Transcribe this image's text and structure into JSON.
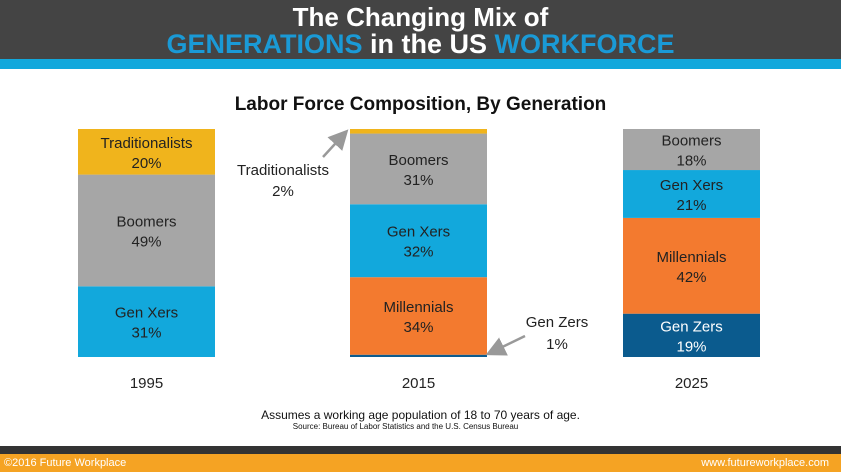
{
  "header": {
    "line1": "The Changing Mix of",
    "line2_a": "GENERATIONS",
    "line2_b": " in the US ",
    "line2_c": "WORKFORCE"
  },
  "chart_data": {
    "type": "bar",
    "stacked": true,
    "title": "Labor Force Composition,  By Generation",
    "categories": [
      "1995",
      "2015",
      "2025"
    ],
    "ylim": [
      0,
      100
    ],
    "series": [
      {
        "name": "Gen Zers",
        "color": "#0B5B8E",
        "values": [
          0,
          1,
          19
        ]
      },
      {
        "name": "Millennials",
        "color": "#F37A2F",
        "values": [
          0,
          34,
          42
        ]
      },
      {
        "name": "Gen Xers",
        "color": "#12A8DC",
        "values": [
          31,
          32,
          21
        ]
      },
      {
        "name": "Boomers",
        "color": "#A6A6A6",
        "values": [
          49,
          31,
          18
        ]
      },
      {
        "name": "Traditionalists",
        "color": "#F0B41C",
        "values": [
          20,
          2,
          0
        ]
      }
    ],
    "callouts": [
      {
        "name": "Traditionalists",
        "value": "2%",
        "category": "2015"
      },
      {
        "name": "Gen Zers",
        "value": "1%",
        "category": "2015"
      }
    ]
  },
  "note": "Assumes a working age population of 18 to 70 years of age.",
  "source": "Source: Bureau of Labor Statistics and the U.S. Census Bureau",
  "footer": {
    "left": "©2016 Future Workplace",
    "right": "www.futureworkplace.com"
  }
}
